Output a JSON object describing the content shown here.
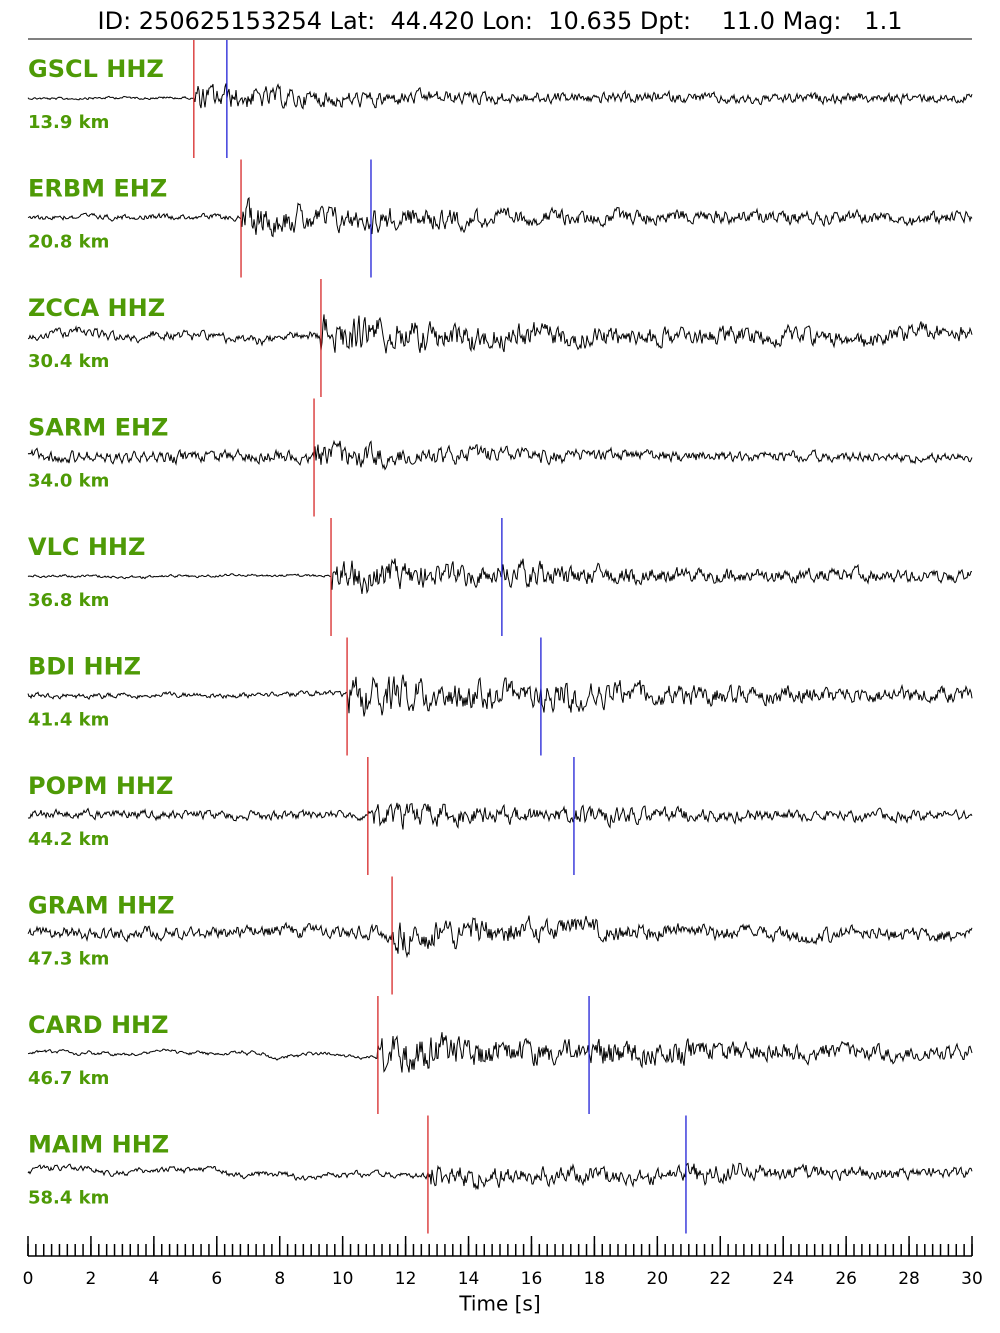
{
  "chart_data": {
    "type": "seismogram",
    "title": "ID: 250625153254 Lat:  44.420 Lon:  10.635 Dpt:    11.0 Mag:   1.1",
    "xlabel": "Time [s]",
    "xlim": [
      0,
      30
    ],
    "xticks": [
      0,
      2,
      4,
      6,
      8,
      10,
      12,
      14,
      16,
      18,
      20,
      22,
      24,
      26,
      28,
      30
    ],
    "xminorticks": [
      0,
      0.25,
      0.5,
      0.75,
      1,
      1.25,
      1.5,
      1.75,
      2,
      2.25,
      2.5,
      2.75,
      3,
      3.25,
      3.5,
      3.75,
      4,
      4.25,
      4.5,
      4.75,
      5,
      5.25,
      5.5,
      5.75,
      6,
      6.25,
      6.5,
      6.75,
      7,
      7.25,
      7.5,
      7.75,
      8,
      8.25,
      8.5,
      8.75,
      9,
      9.25,
      9.5,
      9.75,
      10,
      10.25,
      10.5,
      10.75,
      11,
      11.25,
      11.5,
      11.75,
      12,
      12.25,
      12.5,
      12.75,
      13,
      13.25,
      13.5,
      13.75,
      14,
      14.25,
      14.5,
      14.75,
      15,
      15.25,
      15.5,
      15.75,
      16,
      16.25,
      16.5,
      16.75,
      17,
      17.25,
      17.5,
      17.75,
      18,
      18.25,
      18.5,
      18.75,
      19,
      19.25,
      19.5,
      19.75,
      20,
      20.25,
      20.5,
      20.75,
      21,
      21.25,
      21.5,
      21.75,
      22,
      22.25,
      22.5,
      22.75,
      23,
      23.25,
      23.5,
      23.75,
      24,
      24.25,
      24.5,
      24.75,
      25,
      25.25,
      25.5,
      25.75,
      26,
      26.25,
      26.5,
      26.75,
      27,
      27.25,
      27.5,
      27.75,
      28,
      28.25,
      28.5,
      28.75,
      29,
      29.25,
      29.5,
      29.75,
      30
    ],
    "label_color": "#4e9a06",
    "p_color": "#d62728",
    "s_color": "#1f1fd6",
    "stations": [
      {
        "name": "GSCL HHZ",
        "distance": "13.9 km",
        "p": 5.27,
        "s": 6.32
      },
      {
        "name": "ERBM EHZ",
        "distance": "20.8 km",
        "p": 6.77,
        "s": 10.9
      },
      {
        "name": "ZCCA HHZ",
        "distance": "30.4 km",
        "p": 9.31,
        "s": null
      },
      {
        "name": "SARM EHZ",
        "distance": "34.0 km",
        "p": 9.09,
        "s": null
      },
      {
        "name": "VLC HHZ",
        "distance": "36.8 km",
        "p": 9.63,
        "s": 15.06
      },
      {
        "name": "BDI HHZ",
        "distance": "41.4 km",
        "p": 10.14,
        "s": 16.3
      },
      {
        "name": "POPM HHZ",
        "distance": "44.2 km",
        "p": 10.8,
        "s": 17.35
      },
      {
        "name": "GRAM HHZ",
        "distance": "47.3 km",
        "p": 11.57,
        "s": null
      },
      {
        "name": "CARD HHZ",
        "distance": "46.7 km",
        "p": 11.12,
        "s": 17.83
      },
      {
        "name": "MAIM HHZ",
        "distance": "58.4 km",
        "p": 12.71,
        "s": 20.91
      }
    ]
  }
}
